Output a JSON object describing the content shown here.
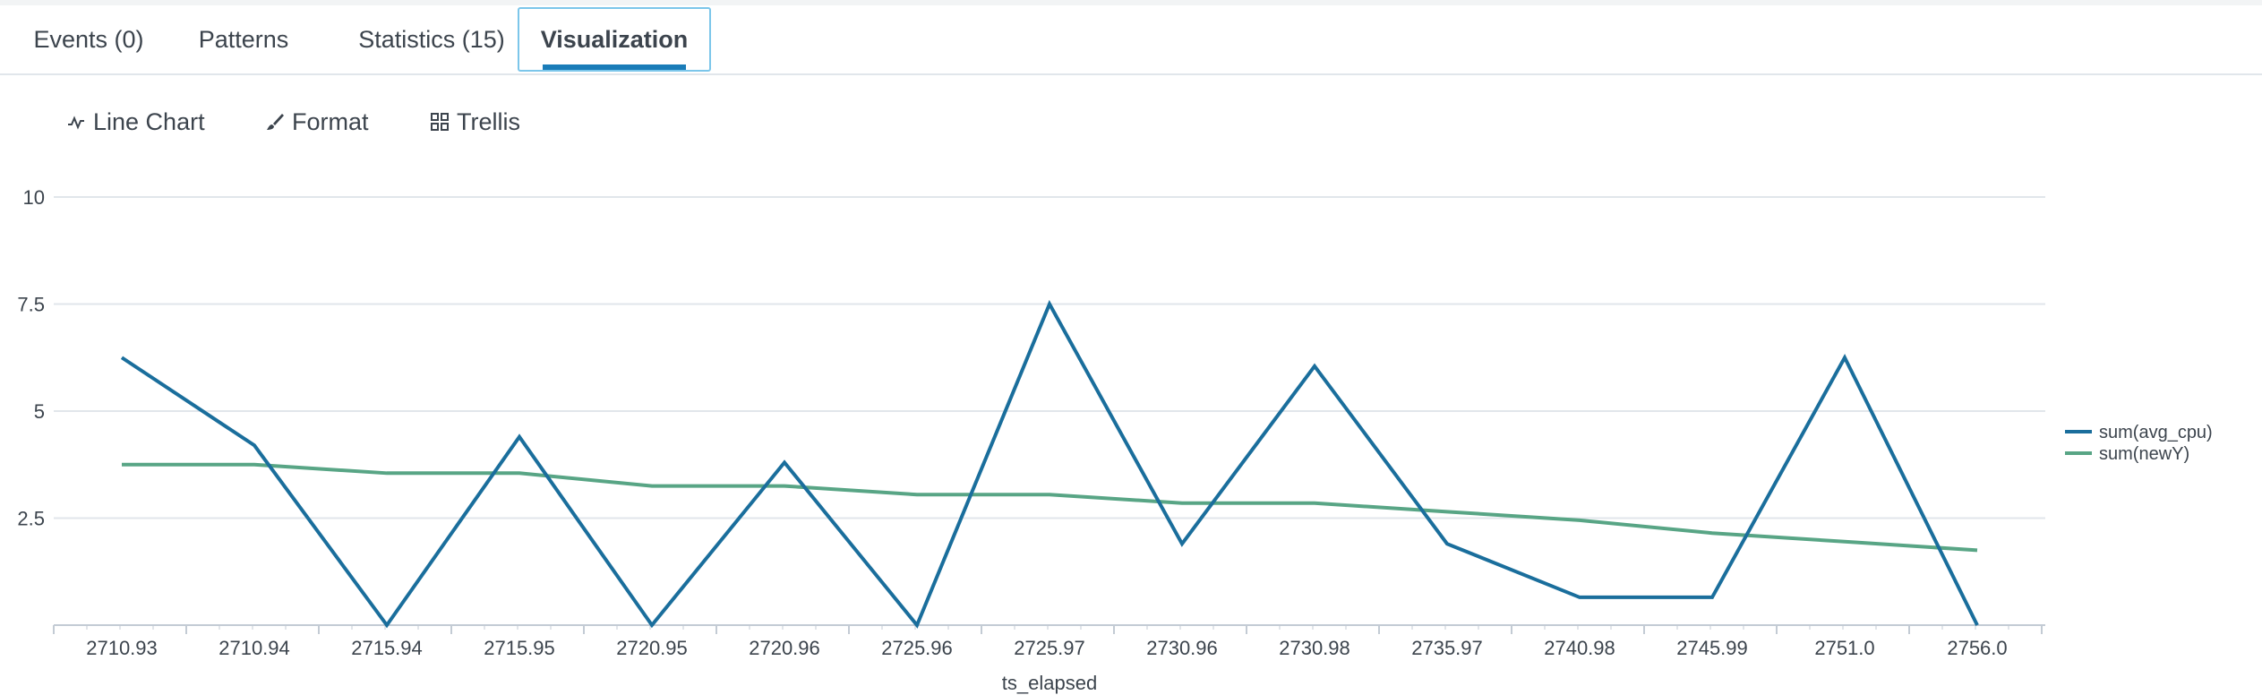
{
  "tabs": [
    {
      "label": "Events (0)"
    },
    {
      "label": "Patterns"
    },
    {
      "label": "Statistics (15)"
    },
    {
      "label": "Visualization",
      "active": true
    }
  ],
  "toolbar": {
    "chart_type_label": "Line Chart",
    "format_label": "Format",
    "trellis_label": "Trellis",
    "chart_type_icon": "line-chart-icon",
    "format_icon": "paintbrush-icon",
    "trellis_icon": "grid-icon"
  },
  "chart_data": {
    "type": "line",
    "xlabel": "ts_elapsed",
    "ylabel": "",
    "ylim": [
      0,
      10
    ],
    "yticks": [
      2.5,
      5,
      7.5,
      10
    ],
    "ytick_labels": [
      "2.5",
      "5",
      "7.5",
      "10"
    ],
    "grid": true,
    "legend_position": "right",
    "categories": [
      "2710.93",
      "2710.94",
      "2715.94",
      "2715.95",
      "2720.95",
      "2720.96",
      "2725.96",
      "2725.97",
      "2730.96",
      "2730.98",
      "2735.97",
      "2740.98",
      "2745.99",
      "2751.0",
      "2756.0"
    ],
    "series": [
      {
        "name": "sum(avg_cpu)",
        "color": "#1a6e9c",
        "values": [
          6.25,
          4.2,
          0,
          4.4,
          0,
          3.8,
          0,
          7.5,
          1.9,
          6.05,
          1.9,
          0.65,
          0.65,
          6.25,
          0
        ]
      },
      {
        "name": "sum(newY)",
        "color": "#58a585",
        "values": [
          3.75,
          3.75,
          3.55,
          3.55,
          3.25,
          3.25,
          3.05,
          3.05,
          2.85,
          2.85,
          2.65,
          2.45,
          2.15,
          1.95,
          1.75
        ]
      }
    ]
  }
}
